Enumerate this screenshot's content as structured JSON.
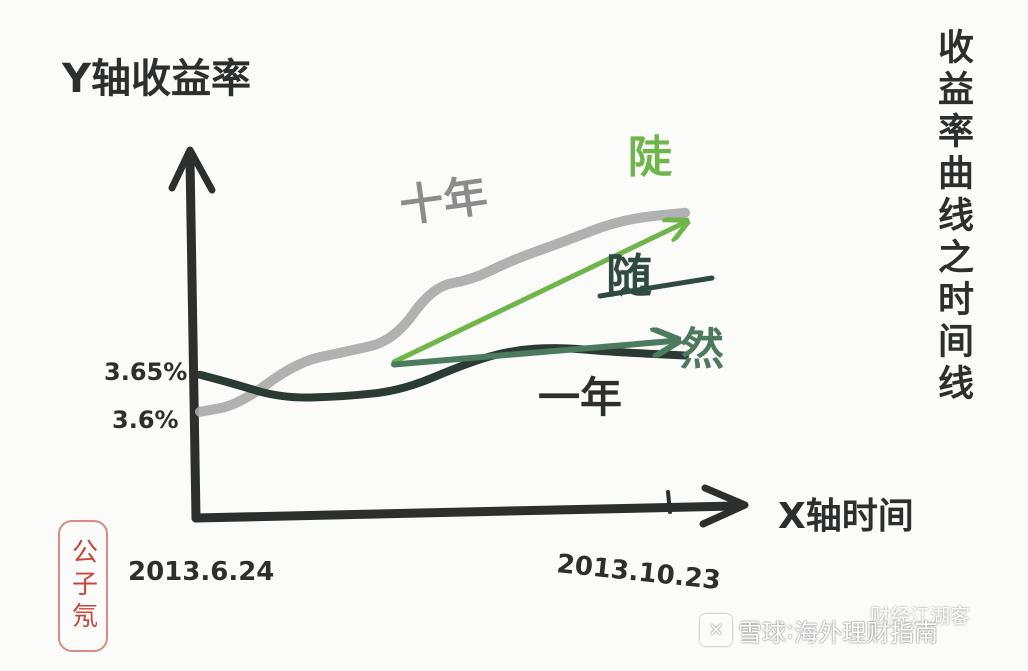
{
  "chart_data": {
    "type": "line",
    "title": "收益率曲线之时间线",
    "ylabel": "Y轴收益率",
    "xlabel": "X轴时间",
    "x_ticks": [
      "2013.6.24",
      "2013.10.23"
    ],
    "y_ticks": [
      "3.65%",
      "3.6%"
    ],
    "series": [
      {
        "name": "十年",
        "color": "#a8a8a8",
        "points": [
          [
            0.0,
            3.594
          ],
          [
            0.08,
            3.605
          ],
          [
            0.2,
            3.672
          ],
          [
            0.3,
            3.688
          ],
          [
            0.4,
            3.705
          ],
          [
            0.48,
            3.79
          ],
          [
            0.56,
            3.8
          ],
          [
            0.64,
            3.83
          ],
          [
            0.75,
            3.86
          ],
          [
            0.87,
            3.895
          ],
          [
            1.0,
            3.905
          ]
        ]
      },
      {
        "name": "一年",
        "color": "#2b3a33",
        "points": [
          [
            0.0,
            3.652
          ],
          [
            0.06,
            3.64
          ],
          [
            0.17,
            3.615
          ],
          [
            0.3,
            3.618
          ],
          [
            0.42,
            3.628
          ],
          [
            0.55,
            3.67
          ],
          [
            0.64,
            3.69
          ],
          [
            0.74,
            3.695
          ],
          [
            0.84,
            3.688
          ],
          [
            1.0,
            3.682
          ]
        ]
      }
    ],
    "annotations": [
      {
        "text": "陡",
        "color": "#6fb54c",
        "from": [
          0.4,
          3.672
        ],
        "to": [
          1.0,
          3.89
        ]
      },
      {
        "text": "然",
        "color": "#4b7a5e",
        "from": [
          0.4,
          3.668
        ],
        "to": [
          0.98,
          3.705
        ]
      },
      {
        "text": "随",
        "color": "#2f4a3e"
      }
    ],
    "grid": false,
    "legend": "none"
  },
  "seal_text": "公子氖",
  "watermark": {
    "site": "雪球",
    "sep": ":",
    "account": "海外理财指南",
    "channel": "财经江湖客"
  }
}
